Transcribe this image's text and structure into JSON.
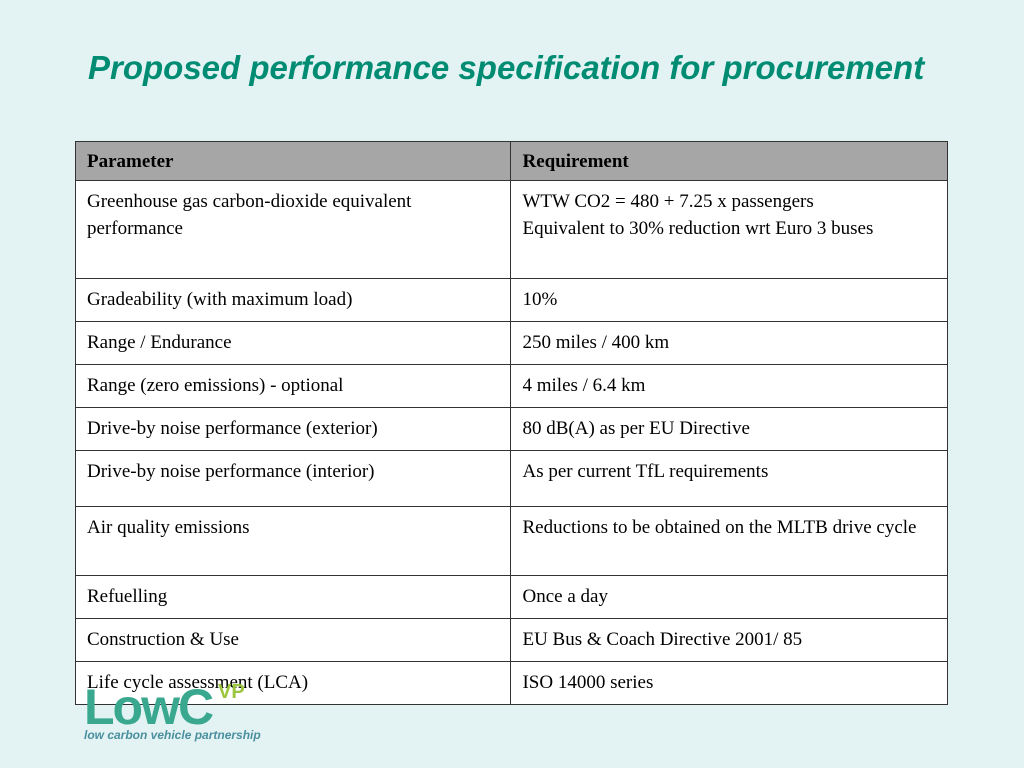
{
  "slide": {
    "title": "Proposed performance specification for procurement"
  },
  "table": {
    "headers": [
      "Parameter",
      "Requirement"
    ],
    "rows": [
      {
        "parameter": "Greenhouse gas carbon-dioxide equivalent performance",
        "requirement": [
          "WTW CO2 = 480 + 7.25 x passengers",
          "Equivalent to 30% reduction wrt Euro 3 buses"
        ]
      },
      {
        "parameter": "Gradeability (with maximum load)",
        "requirement": [
          "10%"
        ]
      },
      {
        "parameter": "Range / Endurance",
        "requirement": [
          "250 miles / 400 km"
        ]
      },
      {
        "parameter": "Range (zero emissions) - optional",
        "requirement": [
          "4 miles / 6.4 km"
        ]
      },
      {
        "parameter": "Drive-by noise performance (exterior)",
        "requirement": [
          "80 dB(A) as per EU Directive"
        ]
      },
      {
        "parameter": "Drive-by noise performance (interior)",
        "requirement": [
          "As per current TfL requirements"
        ]
      },
      {
        "parameter": "Air quality emissions",
        "requirement": [
          "Reductions to be obtained on the MLTB drive cycle"
        ]
      },
      {
        "parameter": "Refuelling",
        "requirement": [
          "Once a day"
        ]
      },
      {
        "parameter": "Construction & Use",
        "requirement": [
          "EU Bus & Coach Directive 2001/ 85"
        ]
      },
      {
        "parameter": "Life cycle assessment (LCA)",
        "requirement": [
          "ISO 14000 series"
        ]
      }
    ]
  },
  "logo": {
    "main": "LowC",
    "superscript": "VP",
    "tagline": "low carbon vehicle partnership"
  },
  "colors": {
    "background": "#e3f3f4",
    "title": "#008b73",
    "header_fill": "#a6a6a6",
    "logo_main": "#3aa88f",
    "logo_sup": "#9bc53d"
  }
}
